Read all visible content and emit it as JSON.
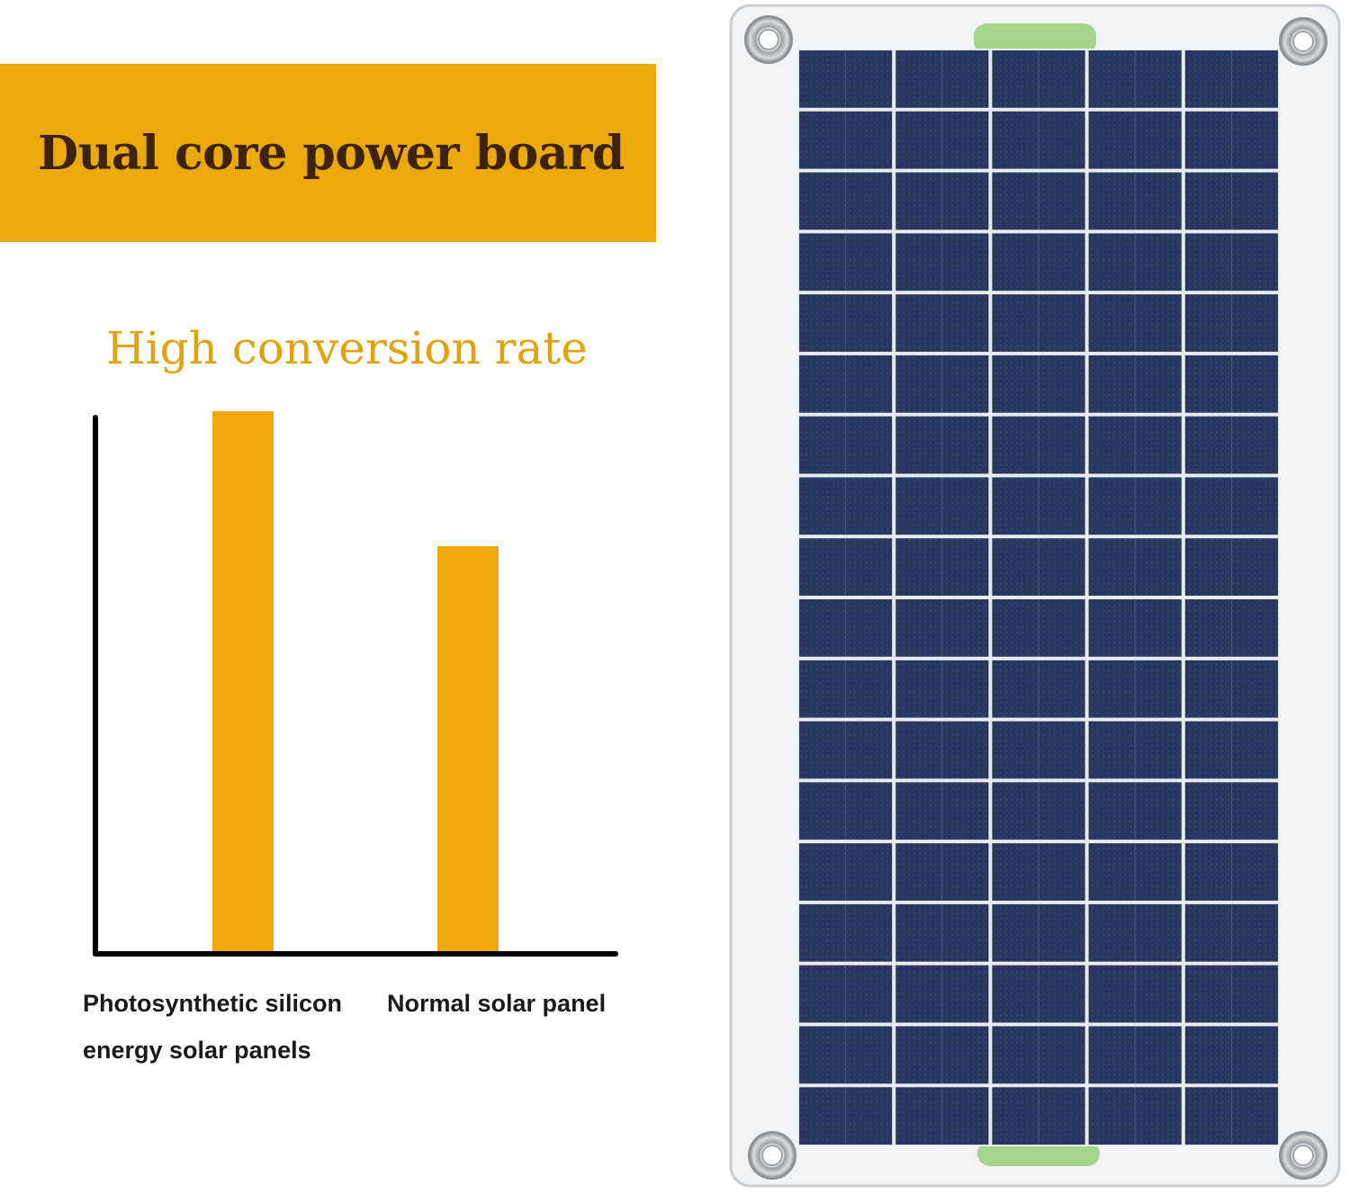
{
  "banner": {
    "title": "Dual core power board",
    "background": "#eba90b",
    "text_color": "#3d230c"
  },
  "chart_data": {
    "type": "bar",
    "title": "High conversion rate",
    "categories": [
      "Photosynthetic silicon energy solar panels",
      "Normal solar panel"
    ],
    "category_lines": [
      [
        "Photosynthetic silicon",
        "energy solar panels"
      ],
      [
        "Normal solar panel"
      ]
    ],
    "values": [
      100,
      75
    ],
    "ylim": [
      0,
      100
    ],
    "xlabel": "",
    "ylabel": "",
    "grid": false,
    "legend": "none",
    "bar_color": "#f0a80c",
    "title_color": "#e2a20d",
    "axis_color": "#000000"
  },
  "product_image": {
    "description_icon": "solar-panel-icon",
    "cell_color": "#27345a",
    "frame_color": "#f1f3f5",
    "tab_color": "#a5d48c",
    "grommet_icon": "grommet-icon"
  }
}
